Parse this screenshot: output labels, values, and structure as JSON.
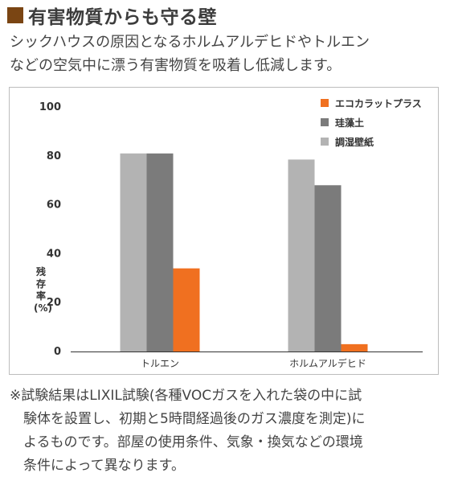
{
  "header": {
    "title": "有害物質からも守る壁",
    "mark_color": "#7a4513"
  },
  "intro": {
    "line1": "シックハウスの原因となるホルムアルデヒドやトルエン",
    "line2": "などの空気中に漂う有害物質を吸着し低減します。"
  },
  "chart_data": {
    "type": "bar",
    "categories": [
      "トルエン",
      "ホルムアルデヒド"
    ],
    "series": [
      {
        "name": "エコカラットプラス",
        "color": "#f07020",
        "values": [
          34,
          3
        ]
      },
      {
        "name": "珪藻土",
        "color": "#7b7b7b",
        "values": [
          81,
          68
        ]
      },
      {
        "name": "調湿壁紙",
        "color": "#b3b3b3",
        "values": [
          81,
          78.5
        ]
      }
    ],
    "bar_order": [
      "調湿壁紙",
      "珪藻土",
      "エコカラットプラス"
    ],
    "yticks": [
      "0",
      "20",
      "40",
      "60",
      "80",
      "100"
    ],
    "ylim": [
      0,
      100
    ],
    "ylabel_lines": [
      "残",
      "存",
      "率",
      "(%)"
    ],
    "legend_position": "top-right",
    "grid": false
  },
  "footnote": {
    "line1": "※試験結果はLIXIL試験(各種VOCガスを入れた袋の中に試",
    "line2": "験体を設置し、初期と5時間経過後のガス濃度を測定)に",
    "line3": "よるものです。部屋の使用条件、気象・換気などの環境",
    "line4": "条件によって異なります。"
  }
}
